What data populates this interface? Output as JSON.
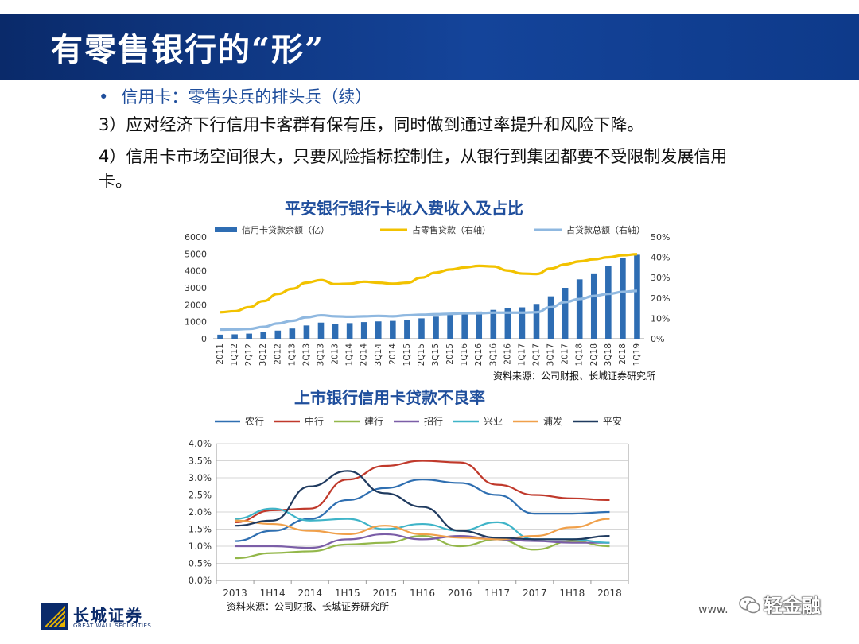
{
  "slide": {
    "title": "有零售银行的“形”",
    "bullet": "信用卡：零售尖兵的排头兵（续）",
    "para1": "3）应对经济下行信用卡客群有保有压，同时做到通过率提升和风险下降。",
    "para2": "4）信用卡市场空间很大，只要风险指标控制住，从银行到集团都要不受限制发展信用卡。"
  },
  "colors": {
    "band": "#14449a",
    "bar": "#2e6db3",
    "retail_line": "#f2c200",
    "total_line": "#8fb8e0"
  },
  "chart_data": [
    {
      "type": "bar",
      "title": "平安银行银行卡收入费收入及占比",
      "categories": [
        "2011",
        "1Q12",
        "2Q12",
        "3Q12",
        "2012",
        "1Q13",
        "2Q13",
        "3Q13",
        "2013",
        "1Q14",
        "2Q14",
        "3Q14",
        "2014",
        "1Q15",
        "2Q15",
        "3Q15",
        "2015",
        "1Q16",
        "2Q16",
        "3Q16",
        "2016",
        "1Q17",
        "2Q17",
        "3Q17",
        "2017",
        "1Q18",
        "2Q18",
        "3Q18",
        "2018",
        "1Q19"
      ],
      "series": [
        {
          "name": "信用卡贷款余额（亿）",
          "axis": "left",
          "kind": "bar",
          "values": [
            240,
            260,
            300,
            380,
            480,
            600,
            780,
            950,
            880,
            920,
            980,
            1020,
            1050,
            1100,
            1200,
            1300,
            1420,
            1500,
            1600,
            1700,
            1800,
            1850,
            2050,
            2500,
            3000,
            3500,
            3850,
            4300,
            4750,
            4950
          ]
        },
        {
          "name": "占零售贷款（右轴）",
          "axis": "right",
          "kind": "line",
          "values": [
            13,
            13.5,
            15.5,
            18.5,
            22,
            24.5,
            27.5,
            28.8,
            26.8,
            27,
            28,
            27.5,
            27,
            27.5,
            30,
            32.5,
            34,
            35,
            35.8,
            35.5,
            33.5,
            32,
            31.8,
            34.5,
            36.5,
            38,
            39,
            40,
            41,
            41.5
          ]
        },
        {
          "name": "占贷款总额（右轴）",
          "axis": "right",
          "kind": "line",
          "values": [
            4.5,
            4.6,
            4.8,
            5.8,
            7.5,
            8.8,
            10.5,
            11.5,
            11,
            10.8,
            11,
            11.2,
            11,
            11.5,
            11.8,
            12,
            12.2,
            12.5,
            12.5,
            12.8,
            12.8,
            12.8,
            13,
            15.5,
            18,
            19.5,
            21,
            22,
            23,
            23.5
          ]
        }
      ],
      "ylim_left": [
        0,
        6000
      ],
      "ylim_right": [
        0,
        50
      ],
      "left_ticks": [
        "6000",
        "5000",
        "4000",
        "3000",
        "2000",
        "1000",
        "0"
      ],
      "right_ticks": [
        "50%",
        "40%",
        "30%",
        "20%",
        "10%",
        "0%"
      ],
      "source": "资料来源：公司财报、长城证券研究所"
    },
    {
      "type": "line",
      "title": "上市银行信用卡贷款不良率",
      "x": [
        "2013",
        "1H14",
        "2014",
        "1H15",
        "2015",
        "1H16",
        "2016",
        "1H17",
        "2017",
        "1H18",
        "2018"
      ],
      "ylim": [
        0,
        4.0
      ],
      "y_ticks": [
        "4.0%",
        "3.5%",
        "3.0%",
        "2.5%",
        "2.0%",
        "1.5%",
        "1.0%",
        "0.5%",
        "0.0%"
      ],
      "series": [
        {
          "name": "农行",
          "color": "#2f6fb1",
          "values": [
            1.15,
            1.45,
            1.8,
            2.35,
            2.7,
            2.95,
            2.85,
            2.5,
            1.95,
            1.95,
            2.0
          ]
        },
        {
          "name": "中行",
          "color": "#c0392b",
          "values": [
            1.7,
            2.05,
            2.1,
            2.95,
            3.35,
            3.5,
            3.45,
            2.8,
            2.5,
            2.4,
            2.35
          ]
        },
        {
          "name": "建行",
          "color": "#93b74a",
          "values": [
            0.65,
            0.8,
            0.85,
            1.05,
            1.1,
            1.3,
            1.0,
            1.2,
            0.9,
            1.15,
            1.0
          ]
        },
        {
          "name": "招行",
          "color": "#7b5ea7",
          "values": [
            1.0,
            1.0,
            0.95,
            1.2,
            1.35,
            1.2,
            1.3,
            1.2,
            1.15,
            1.1,
            1.1
          ]
        },
        {
          "name": "兴业",
          "color": "#3fb4c8",
          "values": [
            1.8,
            2.1,
            1.75,
            1.8,
            1.5,
            1.65,
            1.45,
            1.7,
            1.2,
            1.2,
            1.1
          ]
        },
        {
          "name": "浦发",
          "color": "#f0a04a",
          "values": [
            1.75,
            1.65,
            1.45,
            1.35,
            1.6,
            1.35,
            1.25,
            1.2,
            1.3,
            1.55,
            1.8
          ]
        },
        {
          "name": "平安",
          "color": "#1f3a5f",
          "values": [
            1.6,
            1.75,
            2.75,
            3.2,
            2.55,
            2.15,
            1.45,
            1.25,
            1.2,
            1.2,
            1.3
          ]
        }
      ],
      "source": "资料来源：公司财报、长城证券研究所"
    }
  ],
  "footer": {
    "logo_cn": "长城证券",
    "logo_en": "GREAT WALL SECURITIES",
    "watermark_url": "www.",
    "watermark_brand": "轻金融"
  }
}
